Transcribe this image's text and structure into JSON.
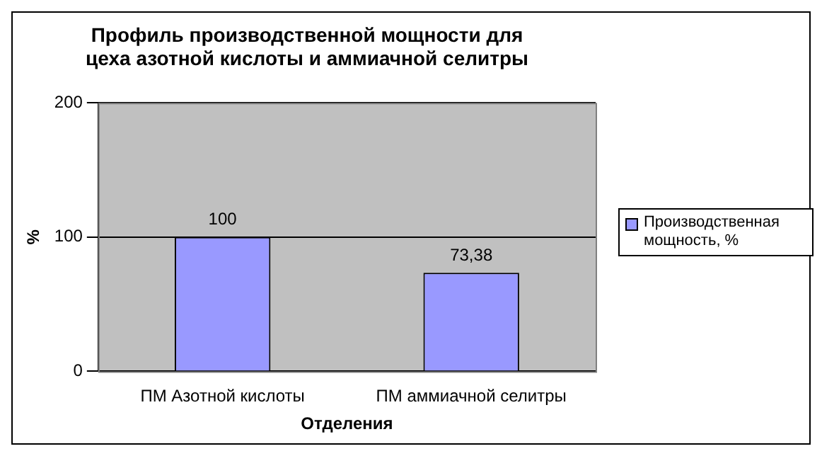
{
  "chart_data": {
    "type": "bar",
    "title": "Профиль производственной мощности для цеха азотной кислоты и аммиачной селитры",
    "xlabel": "Отделения",
    "ylabel": "%",
    "categories": [
      "ПМ Азотной кислоты",
      "ПМ аммиачной селитры"
    ],
    "series": [
      {
        "name": "Производственная мощность, %",
        "color": "#9999ff",
        "values": [
          100,
          73.38
        ],
        "value_labels": [
          "100",
          "73,38"
        ]
      }
    ],
    "ylim": [
      0,
      200
    ],
    "yticks": [
      0,
      100,
      200
    ],
    "grid": "y",
    "legend": "right"
  }
}
